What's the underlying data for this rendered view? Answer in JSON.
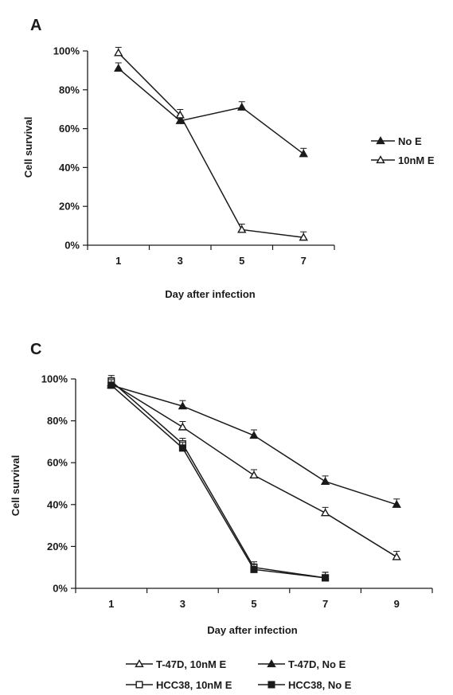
{
  "chart_data": [
    {
      "panel": "A",
      "type": "line",
      "x": [
        1,
        3,
        5,
        7
      ],
      "xlabel": "Day after infection",
      "ylabel": "Cell survival",
      "ylim": [
        0,
        100
      ],
      "yticks": [
        "0%",
        "20%",
        "40%",
        "60%",
        "80%",
        "100%"
      ],
      "grid": false,
      "legend": "right",
      "series": [
        {
          "name": "No E",
          "marker": "filled-triangle",
          "values": [
            91,
            64,
            71,
            47
          ]
        },
        {
          "name": "10nM E",
          "marker": "open-triangle",
          "values": [
            99,
            67,
            8,
            4
          ]
        }
      ]
    },
    {
      "panel": "C",
      "type": "line",
      "x": [
        1,
        3,
        5,
        7,
        9
      ],
      "xlabel": "Day after infection",
      "ylabel": "Cell survival",
      "ylim": [
        0,
        100
      ],
      "yticks": [
        "0%",
        "20%",
        "40%",
        "60%",
        "80%",
        "100%"
      ],
      "grid": false,
      "legend": "bottom",
      "series": [
        {
          "name": "T-47D, 10nM E",
          "marker": "open-triangle",
          "values": [
            98,
            77,
            54,
            36,
            15
          ]
        },
        {
          "name": "T-47D, No E",
          "marker": "filled-triangle",
          "values": [
            97,
            87,
            73,
            51,
            40
          ]
        },
        {
          "name": "HCC38, 10nM E",
          "marker": "open-square",
          "values": [
            99,
            69,
            10,
            5,
            null
          ]
        },
        {
          "name": "HCC38, No E",
          "marker": "filled-square",
          "values": [
            97,
            67,
            9,
            5,
            null
          ]
        }
      ]
    }
  ]
}
